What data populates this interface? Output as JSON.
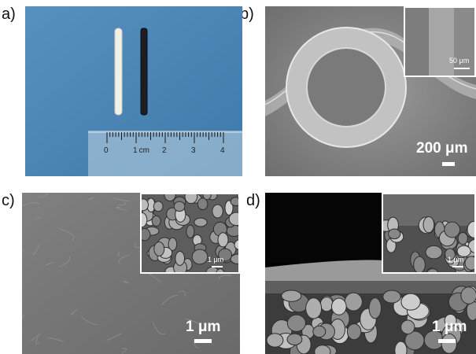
{
  "panels": {
    "a": {
      "label": "a)",
      "ruler": {
        "ticks": [
          "0",
          "1",
          "2",
          "3",
          "4"
        ],
        "unit": "cm"
      }
    },
    "b": {
      "label": "b)",
      "scalebar": "200 μm",
      "inset_scalebar": "50 μm"
    },
    "c": {
      "label": "c)",
      "scalebar": "1 μm",
      "inset_scalebar": "1 μm"
    },
    "d": {
      "label": "d)",
      "scalebar": "1 μm",
      "inset_scalebar": "1 μm"
    }
  },
  "colors": {
    "background_a": "#4b86b6",
    "sem_gray": "#8a8a8a",
    "white": "#ffffff"
  }
}
